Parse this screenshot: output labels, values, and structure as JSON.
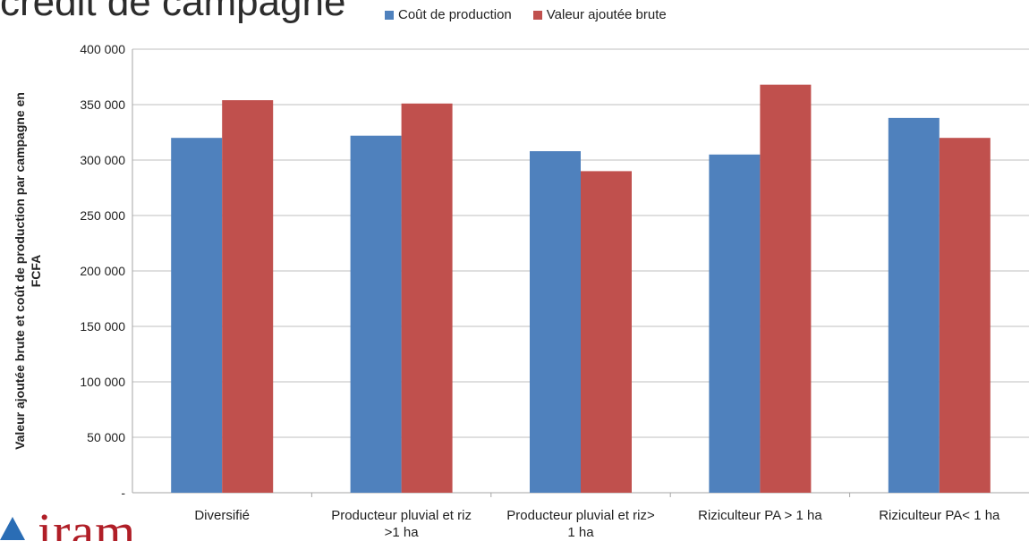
{
  "slide": {
    "title": "crédit de campagne"
  },
  "logo": {
    "text": "iram"
  },
  "colors": {
    "series1": "#4f81bd",
    "series2": "#c0504d",
    "axis": "#a6a6a6",
    "grid": "#bfbfbf",
    "text": "#222222"
  },
  "chart_data": {
    "type": "bar",
    "categories": [
      [
        "Diversifié"
      ],
      [
        "Producteur pluvial et riz",
        ">1 ha"
      ],
      [
        "Producteur pluvial et riz>",
        "1 ha"
      ],
      [
        "Riziculteur PA > 1 ha"
      ],
      [
        "Riziculteur PA< 1 ha"
      ]
    ],
    "series": [
      {
        "name": "Coût de production",
        "values": [
          320000,
          322000,
          308000,
          305000,
          338000
        ]
      },
      {
        "name": "Valeur ajoutée brute",
        "values": [
          354000,
          351000,
          290000,
          368000,
          320000
        ]
      }
    ],
    "ylabel": [
      "Valeur ajoutée brute et coût de production par campagne en",
      "FCFA"
    ],
    "ylim": [
      0,
      400000
    ],
    "yticks": [
      {
        "value": 0,
        "label": "-"
      },
      {
        "value": 50000,
        "label": "50 000"
      },
      {
        "value": 100000,
        "label": "100 000"
      },
      {
        "value": 150000,
        "label": "150 000"
      },
      {
        "value": 200000,
        "label": "200 000"
      },
      {
        "value": 250000,
        "label": "250 000"
      },
      {
        "value": 300000,
        "label": "300 000"
      },
      {
        "value": 350000,
        "label": "350 000"
      },
      {
        "value": 400000,
        "label": "400 000"
      }
    ],
    "grid": true,
    "legend": "top"
  }
}
